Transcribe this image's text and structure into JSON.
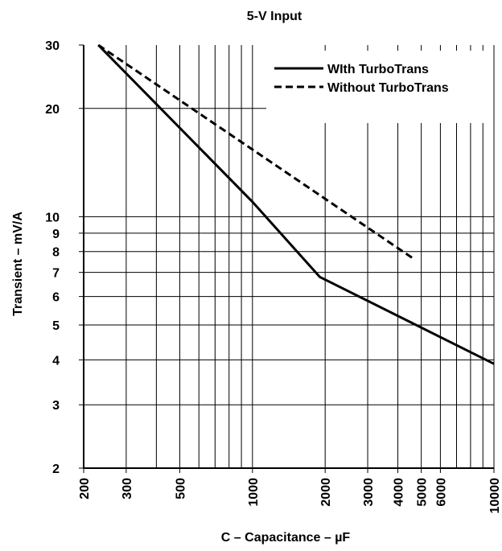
{
  "chart_data": {
    "type": "line",
    "title": "5-V Input",
    "xlabel": "C – Capacitance – µF",
    "ylabel": "Transient – mV/A",
    "xscale": "log",
    "yscale": "log",
    "xlim": [
      200,
      10000
    ],
    "ylim": [
      2,
      30
    ],
    "grid": true,
    "legend_position": "top-right",
    "x_tick_labels": [
      "200",
      "300",
      "500",
      "1000",
      "2000",
      "3000",
      "4000",
      "5000",
      "6000",
      "10000"
    ],
    "y_tick_labels": [
      "2",
      "3",
      "4",
      "5",
      "6",
      "7",
      "8",
      "9",
      "10",
      "20",
      "30"
    ],
    "series": [
      {
        "name": "WIth TurboTrans",
        "style": "solid",
        "color": "#000000",
        "x": [
          230,
          1000,
          1900,
          10000
        ],
        "y": [
          30,
          11,
          6.8,
          3.9
        ]
      },
      {
        "name": "Without TurboTrans",
        "style": "dashed",
        "color": "#000000",
        "x": [
          230,
          4700
        ],
        "y": [
          30,
          7.6
        ]
      }
    ]
  }
}
